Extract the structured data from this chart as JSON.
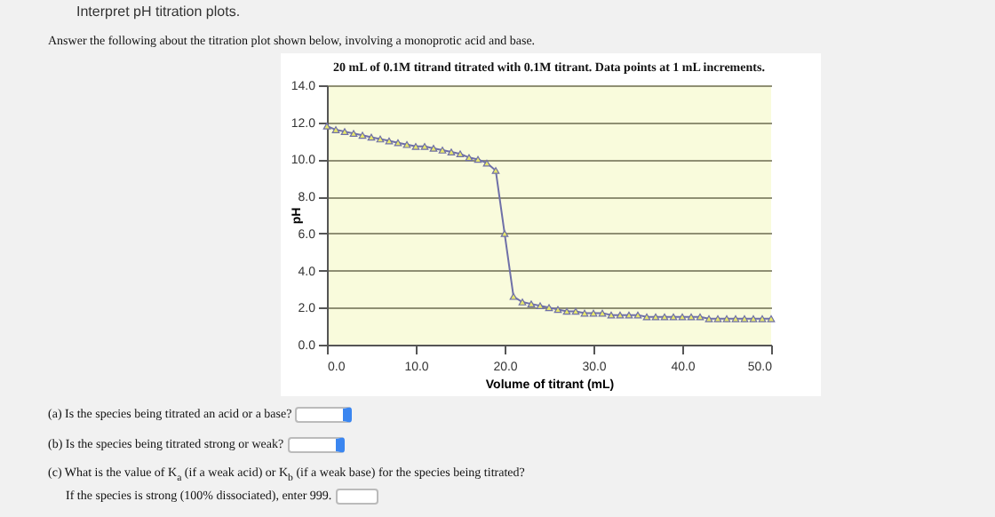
{
  "chart_data": {
    "type": "line",
    "title": "20 mL of 0.1M titrand titrated with 0.1M titrant. Data points at 1 mL increments.",
    "xlabel": "Volume of titrant (mL)",
    "ylabel": "pH",
    "x": [
      0,
      1,
      2,
      3,
      4,
      5,
      6,
      7,
      8,
      9,
      10,
      11,
      12,
      13,
      14,
      15,
      16,
      17,
      18,
      19,
      20,
      21,
      22,
      23,
      24,
      25,
      26,
      27,
      28,
      29,
      30,
      31,
      32,
      33,
      34,
      35,
      36,
      37,
      38,
      39,
      40,
      41,
      42,
      43,
      44,
      45,
      46,
      47,
      48,
      49,
      50
    ],
    "series": [
      {
        "color": "#6f70a8",
        "values": [
          11.8,
          11.6,
          11.5,
          11.4,
          11.3,
          11.2,
          11.1,
          11.0,
          10.9,
          10.8,
          10.7,
          10.7,
          10.6,
          10.5,
          10.4,
          10.3,
          10.1,
          10.0,
          9.8,
          9.4,
          6.0,
          2.6,
          2.3,
          2.2,
          2.1,
          2.0,
          1.9,
          1.8,
          1.8,
          1.7,
          1.7,
          1.7,
          1.6,
          1.6,
          1.6,
          1.6,
          1.5,
          1.5,
          1.5,
          1.5,
          1.5,
          1.5,
          1.5,
          1.4,
          1.4,
          1.4,
          1.4,
          1.4,
          1.4,
          1.4,
          1.4
        ]
      }
    ],
    "xlim": [
      0,
      50
    ],
    "ylim": [
      0,
      14
    ],
    "xticks": [
      {
        "value": 0,
        "label": "0.0"
      },
      {
        "value": 10,
        "label": "10.0"
      },
      {
        "value": 20,
        "label": "20.0"
      },
      {
        "value": 30,
        "label": "30.0"
      },
      {
        "value": 40,
        "label": "40.0"
      },
      {
        "value": 50,
        "label": "50.0"
      }
    ],
    "yticks": [
      {
        "value": 0,
        "label": "0.0"
      },
      {
        "value": 2,
        "label": "2.0"
      },
      {
        "value": 4,
        "label": "4.0"
      },
      {
        "value": 6,
        "label": "6.0"
      },
      {
        "value": 8,
        "label": "8.0"
      },
      {
        "value": 10,
        "label": "10.0"
      },
      {
        "value": 12,
        "label": "12.0"
      },
      {
        "value": 14,
        "label": "14.0"
      }
    ],
    "grid": "y",
    "marker": "triangle",
    "line_style": "solid",
    "annotations": [
      "Interpret pH titration plots.",
      "Answer the following about the titration plot shown below, involving a monoprotic acid and base.",
      "(a) Is the species being titrated an acid or a base?",
      "(b) Is the species being titrated strong or weak?",
      "(c) What is the value of K$_{a}$ (if a weak acid) or K$_{b}$ (if a weak base) for the species being titrated?",
      "If the species is strong (100% dissociated), enter 999."
    ]
  }
}
